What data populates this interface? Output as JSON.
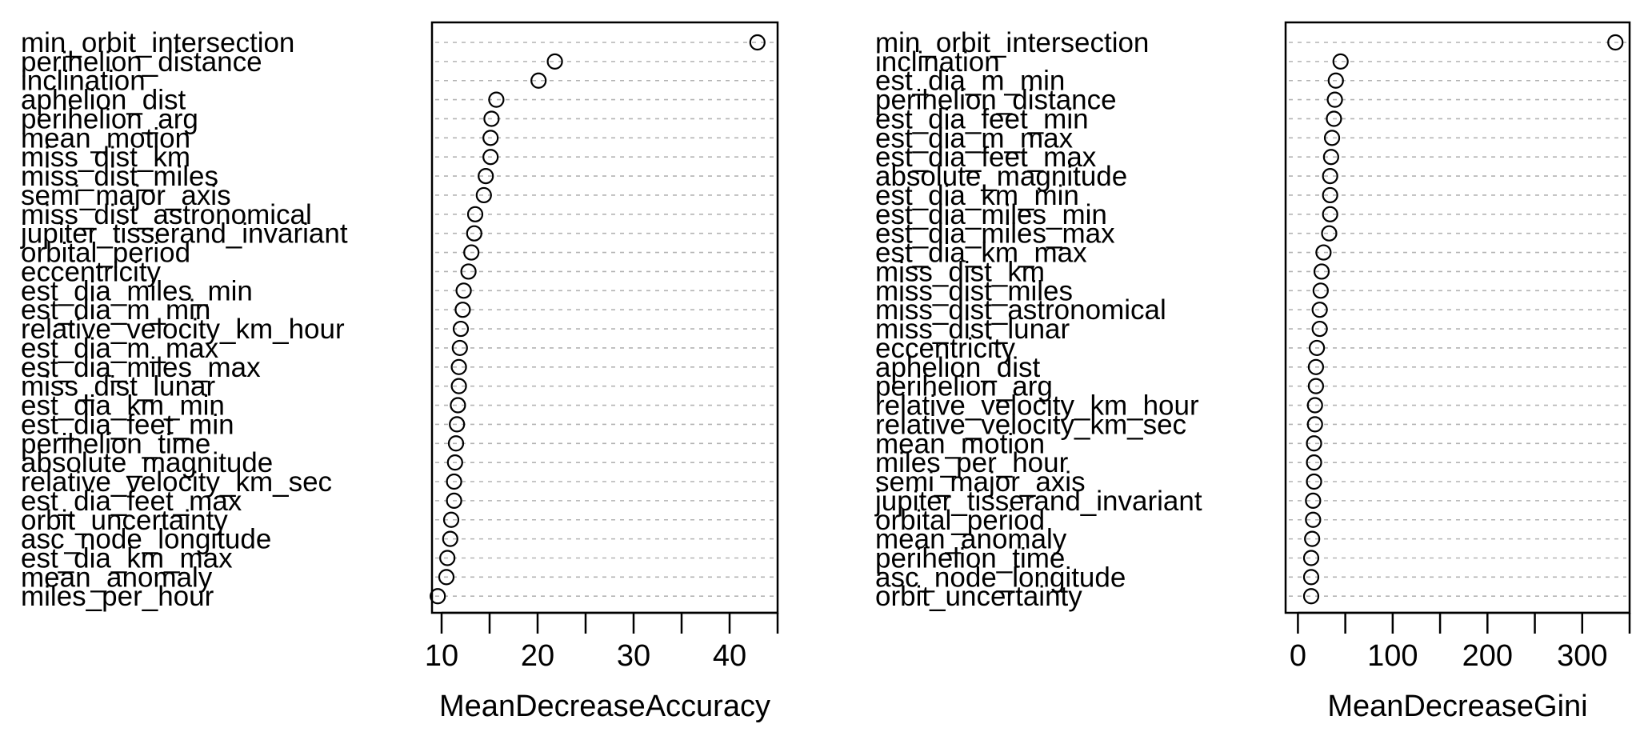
{
  "chart_data": [
    {
      "type": "scatter",
      "xlabel": "MeanDecreaseAccuracy",
      "xlim": [
        9,
        45
      ],
      "xticks": [
        10,
        20,
        30,
        40
      ],
      "grid": true,
      "categories": [
        "min_orbit_intersection",
        "perihelion_distance",
        "inclination",
        "aphelion_dist",
        "perihelion_arg",
        "mean_motion",
        "miss_dist_km",
        "miss_dist_miles",
        "semi_major_axis",
        "miss_dist_astronomical",
        "jupiter_tisserand_invariant",
        "orbital_period",
        "eccentricity",
        "est_dia_miles_min",
        "est_dia_m_min",
        "relative_velocity_km_hour",
        "est_dia_m_max",
        "est_dia_miles_max",
        "miss_dist_lunar",
        "est_dia_km_min",
        "est_dia_feet_min",
        "perihelion_time",
        "absolute_magnitude",
        "relative_velocity_km_sec",
        "est_dia_feet_max",
        "orbit_uncertainty",
        "asc_node_longitude",
        "est_dia_km_max",
        "mean_anomaly",
        "miles_per_hour"
      ],
      "values": [
        42.9,
        21.8,
        20.1,
        15.7,
        15.2,
        15.1,
        15.1,
        14.6,
        14.4,
        13.5,
        13.4,
        13.1,
        12.8,
        12.3,
        12.2,
        12.0,
        11.9,
        11.8,
        11.8,
        11.7,
        11.6,
        11.5,
        11.4,
        11.3,
        11.3,
        11.0,
        10.9,
        10.6,
        10.5,
        9.6
      ]
    },
    {
      "type": "scatter",
      "xlabel": "MeanDecreaseGini",
      "xlim": [
        -13,
        350
      ],
      "xticks": [
        0,
        100,
        200,
        300
      ],
      "grid": true,
      "categories": [
        "min_orbit_intersection",
        "inclination",
        "est_dia_m_min",
        "perihelion_distance",
        "est_dia_feet_min",
        "est_dia_m_max",
        "est_dia_feet_max",
        "absolute_magnitude",
        "est_dia_km_min",
        "est_dia_miles_min",
        "est_dia_miles_max",
        "est_dia_km_max",
        "miss_dist_km",
        "miss_dist_miles",
        "miss_dist_astronomical",
        "miss_dist_lunar",
        "eccentricity",
        "aphelion_dist",
        "perihelion_arg",
        "relative_velocity_km_hour",
        "relative_velocity_km_sec",
        "mean_motion",
        "miles_per_hour",
        "semi_major_axis",
        "jupiter_tisserand_invariant",
        "orbital_period",
        "mean_anomaly",
        "perihelion_time",
        "asc_node_longitude",
        "orbit_uncertainty"
      ],
      "values": [
        335,
        45,
        40,
        39,
        38,
        36,
        35,
        34,
        34,
        34,
        33,
        27,
        25,
        24,
        23,
        23,
        20,
        19,
        19,
        18,
        18,
        17,
        17,
        17,
        16,
        16,
        15,
        14,
        14,
        14
      ]
    }
  ]
}
